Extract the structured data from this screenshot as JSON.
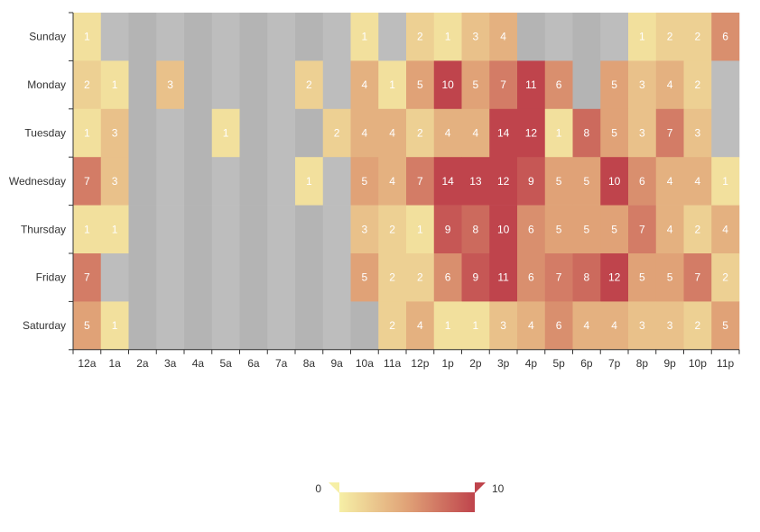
{
  "chart_data": {
    "type": "heatmap",
    "x_categories": [
      "12a",
      "1a",
      "2a",
      "3a",
      "4a",
      "5a",
      "6a",
      "7a",
      "8a",
      "9a",
      "10a",
      "11a",
      "12p",
      "1p",
      "2p",
      "3p",
      "4p",
      "5p",
      "6p",
      "7p",
      "8p",
      "9p",
      "10p",
      "11p"
    ],
    "y_categories": [
      "Sunday",
      "Monday",
      "Tuesday",
      "Wednesday",
      "Thursday",
      "Friday",
      "Saturday"
    ],
    "values": [
      [
        1,
        0,
        0,
        0,
        0,
        0,
        0,
        0,
        0,
        0,
        1,
        0,
        2,
        1,
        3,
        4,
        0,
        0,
        0,
        0,
        1,
        2,
        2,
        6
      ],
      [
        2,
        1,
        0,
        3,
        0,
        0,
        0,
        0,
        2,
        0,
        4,
        1,
        5,
        10,
        5,
        7,
        11,
        6,
        0,
        5,
        3,
        4,
        2,
        0
      ],
      [
        1,
        3,
        0,
        0,
        0,
        1,
        0,
        0,
        0,
        2,
        4,
        4,
        2,
        4,
        4,
        14,
        12,
        1,
        8,
        5,
        3,
        7,
        3,
        0
      ],
      [
        7,
        3,
        0,
        0,
        0,
        0,
        0,
        0,
        1,
        0,
        5,
        4,
        7,
        14,
        13,
        12,
        9,
        5,
        5,
        10,
        6,
        4,
        4,
        1
      ],
      [
        1,
        1,
        0,
        0,
        0,
        0,
        0,
        0,
        0,
        0,
        3,
        2,
        1,
        9,
        8,
        10,
        6,
        5,
        5,
        5,
        7,
        4,
        2,
        4
      ],
      [
        7,
        0,
        0,
        0,
        0,
        0,
        0,
        0,
        0,
        0,
        5,
        2,
        2,
        6,
        9,
        11,
        6,
        7,
        8,
        12,
        5,
        5,
        7,
        2
      ],
      [
        5,
        1,
        0,
        0,
        0,
        0,
        0,
        0,
        0,
        0,
        0,
        2,
        4,
        1,
        1,
        3,
        4,
        6,
        4,
        4,
        3,
        3,
        2,
        5
      ]
    ],
    "visual_map": {
      "min": 0,
      "max": 10,
      "min_label": "0",
      "max_label": "10"
    },
    "colors": {
      "low": "#f6efa6",
      "mid": "#e0a277",
      "high": "#bf444c",
      "empty_a": "#b4b4b4",
      "empty_b": "#bdbdbd",
      "label": "#ffffff"
    },
    "title": "",
    "xlabel": "",
    "ylabel": ""
  }
}
